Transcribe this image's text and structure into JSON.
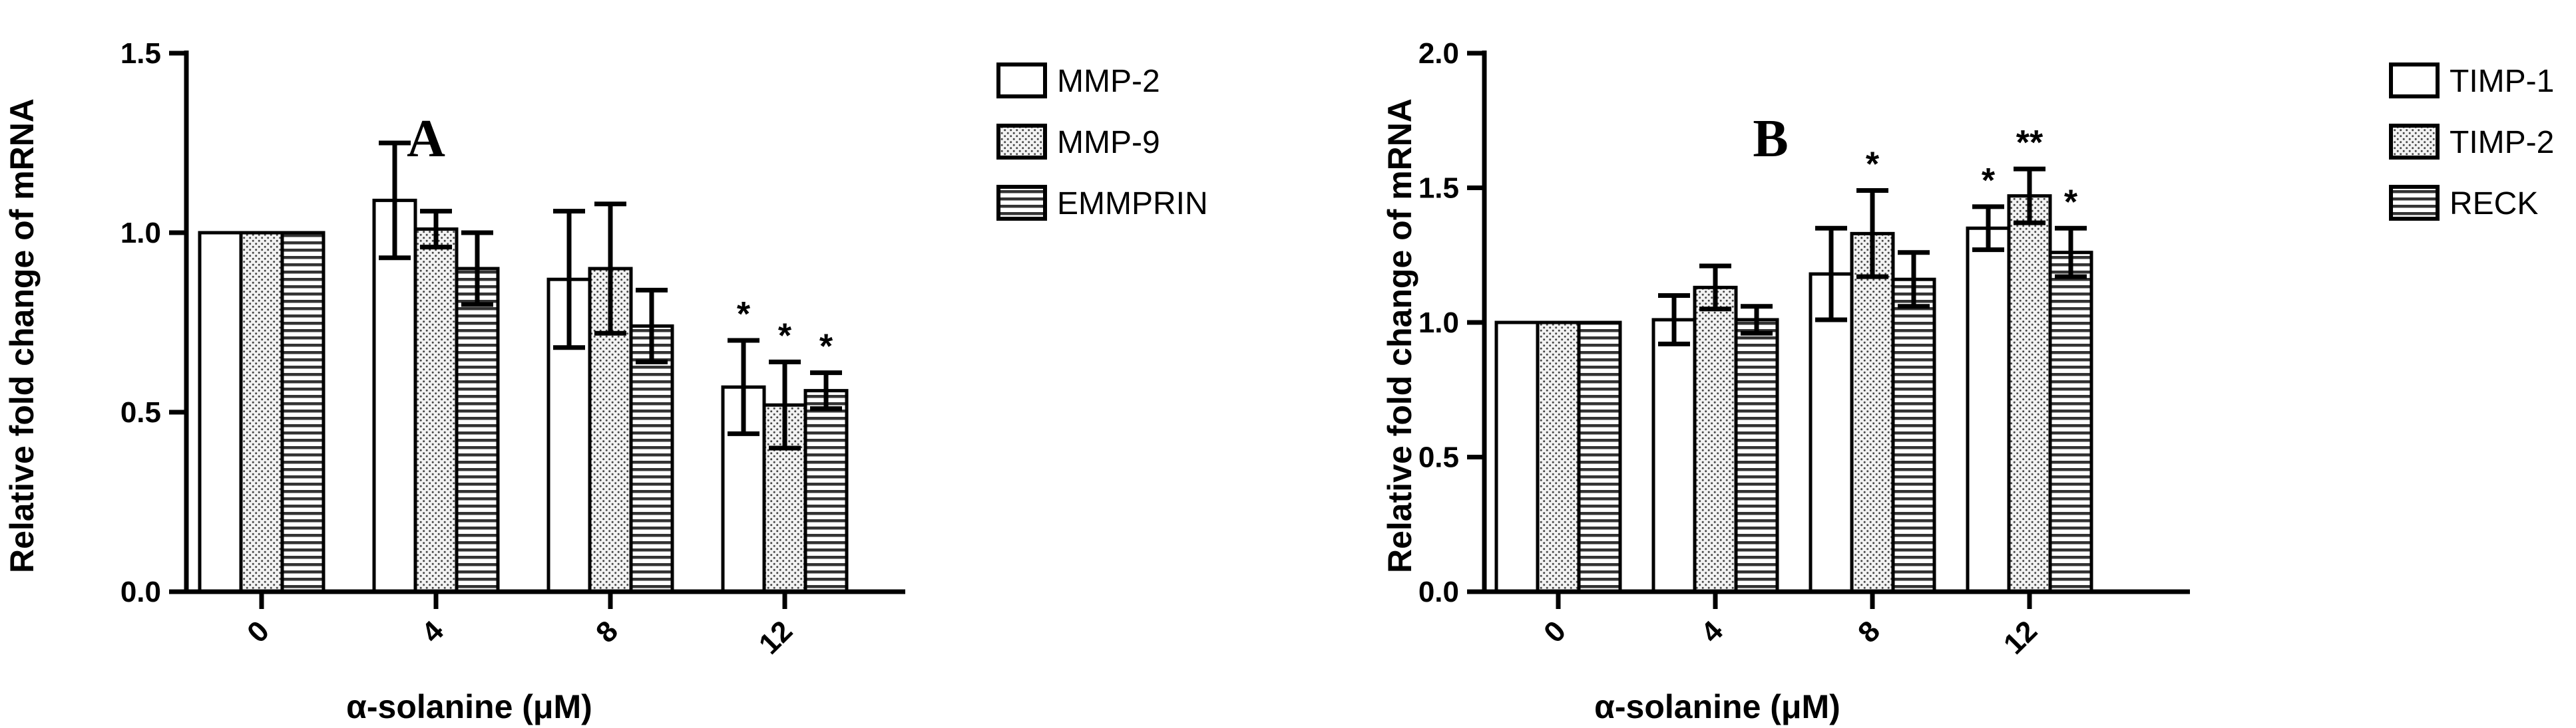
{
  "chart_data": [
    {
      "type": "bar",
      "panel_label": "A",
      "xlabel": "α-solanine (μM)",
      "ylabel": "Relative fold change of mRNA",
      "categories": [
        "0",
        "4",
        "8",
        "12"
      ],
      "ylim": [
        0,
        1.5
      ],
      "yticks": [
        "0.0",
        "0.5",
        "1.0",
        "1.5"
      ],
      "series": [
        {
          "name": "MMP-2",
          "pattern": "open",
          "values": [
            1.0,
            1.09,
            0.87,
            0.57
          ],
          "errors": [
            0,
            0.16,
            0.19,
            0.13
          ],
          "sig": [
            "",
            "",
            "",
            "*"
          ]
        },
        {
          "name": "MMP-9",
          "pattern": "dotted",
          "values": [
            1.0,
            1.01,
            0.9,
            0.52
          ],
          "errors": [
            0,
            0.05,
            0.18,
            0.12
          ],
          "sig": [
            "",
            "",
            "",
            "*"
          ]
        },
        {
          "name": "EMMPRIN",
          "pattern": "horizontal-lines",
          "values": [
            1.0,
            0.9,
            0.74,
            0.56
          ],
          "errors": [
            0,
            0.1,
            0.1,
            0.05
          ],
          "sig": [
            "",
            "",
            "",
            "*"
          ]
        }
      ],
      "legend_position": "right"
    },
    {
      "type": "bar",
      "panel_label": "B",
      "xlabel": "α-solanine (μM)",
      "ylabel": "Relative fold change of mRNA",
      "categories": [
        "0",
        "4",
        "8",
        "12"
      ],
      "ylim": [
        0,
        2.0
      ],
      "yticks": [
        "0.0",
        "0.5",
        "1.0",
        "1.5",
        "2.0"
      ],
      "series": [
        {
          "name": "TIMP-1",
          "pattern": "open",
          "values": [
            1.0,
            1.01,
            1.18,
            1.35
          ],
          "errors": [
            0,
            0.09,
            0.17,
            0.08
          ],
          "sig": [
            "",
            "",
            "",
            "*"
          ]
        },
        {
          "name": "TIMP-2",
          "pattern": "dotted",
          "values": [
            1.0,
            1.13,
            1.33,
            1.47
          ],
          "errors": [
            0,
            0.08,
            0.16,
            0.1
          ],
          "sig": [
            "",
            "",
            "*",
            "**"
          ]
        },
        {
          "name": "RECK",
          "pattern": "horizontal-lines",
          "values": [
            1.0,
            1.01,
            1.16,
            1.26
          ],
          "errors": [
            0,
            0.05,
            0.1,
            0.09
          ],
          "sig": [
            "",
            "",
            "",
            "*"
          ]
        }
      ],
      "legend_position": "right"
    }
  ]
}
